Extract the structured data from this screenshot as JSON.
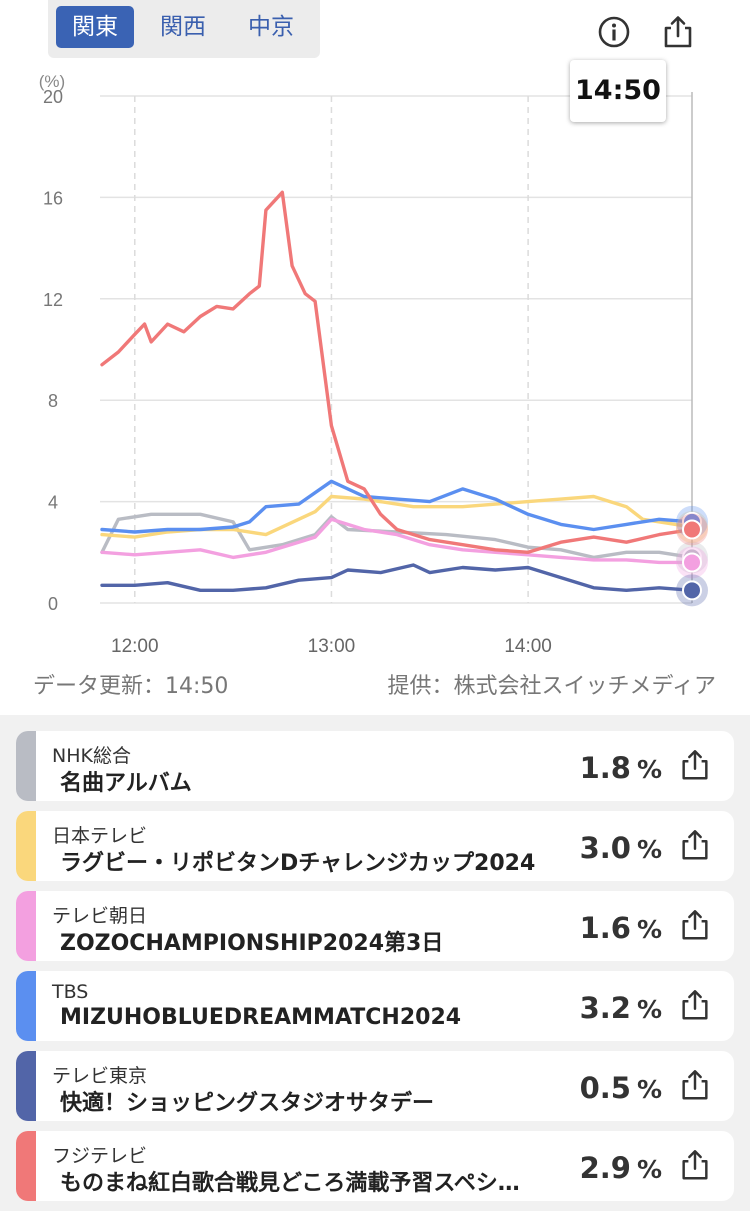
{
  "tabs": [
    {
      "label": "関東",
      "active": true
    },
    {
      "label": "関西",
      "active": false
    },
    {
      "label": "中京",
      "active": false
    }
  ],
  "icons": {
    "info": "info-icon",
    "share": "share-icon"
  },
  "tooltip": "14:50",
  "footer": {
    "updated": "データ更新：14:50",
    "provider": "提供：株式会社スイッチメディア"
  },
  "chart_data": {
    "type": "line",
    "ylabel": "(%)",
    "ylim": [
      0,
      20
    ],
    "yticks": [
      0,
      4,
      8,
      12,
      16,
      20
    ],
    "xlim": [
      "11:50",
      "14:50"
    ],
    "xticks": [
      "12:00",
      "13:00",
      "14:00"
    ],
    "cursor": "14:50",
    "grid": true,
    "series": [
      {
        "name": "NHK総合",
        "color": "#b9bcc4",
        "points": [
          [
            "11:50",
            2.0
          ],
          [
            "11:55",
            3.3
          ],
          [
            "12:05",
            3.5
          ],
          [
            "12:20",
            3.5
          ],
          [
            "12:30",
            3.2
          ],
          [
            "12:35",
            2.1
          ],
          [
            "12:45",
            2.3
          ],
          [
            "12:55",
            2.7
          ],
          [
            "13:00",
            3.4
          ],
          [
            "13:05",
            2.9
          ],
          [
            "13:20",
            2.8
          ],
          [
            "13:35",
            2.7
          ],
          [
            "13:50",
            2.5
          ],
          [
            "14:00",
            2.2
          ],
          [
            "14:10",
            2.1
          ],
          [
            "14:20",
            1.8
          ],
          [
            "14:30",
            2.0
          ],
          [
            "14:40",
            2.0
          ],
          [
            "14:50",
            1.8
          ]
        ]
      },
      {
        "name": "日本テレビ",
        "color": "#fad77c",
        "points": [
          [
            "11:50",
            2.7
          ],
          [
            "12:00",
            2.6
          ],
          [
            "12:10",
            2.8
          ],
          [
            "12:20",
            2.9
          ],
          [
            "12:30",
            2.9
          ],
          [
            "12:40",
            2.7
          ],
          [
            "12:50",
            3.3
          ],
          [
            "12:55",
            3.6
          ],
          [
            "13:00",
            4.2
          ],
          [
            "13:10",
            4.1
          ],
          [
            "13:25",
            3.8
          ],
          [
            "13:40",
            3.8
          ],
          [
            "14:00",
            4.0
          ],
          [
            "14:10",
            4.1
          ],
          [
            "14:20",
            4.2
          ],
          [
            "14:30",
            3.8
          ],
          [
            "14:35",
            3.3
          ],
          [
            "14:45",
            3.1
          ],
          [
            "14:50",
            3.0
          ]
        ]
      },
      {
        "name": "テレビ朝日",
        "color": "#f3a0e0",
        "points": [
          [
            "11:50",
            2.0
          ],
          [
            "12:00",
            1.9
          ],
          [
            "12:10",
            2.0
          ],
          [
            "12:20",
            2.1
          ],
          [
            "12:30",
            1.8
          ],
          [
            "12:40",
            2.0
          ],
          [
            "12:50",
            2.4
          ],
          [
            "12:55",
            2.6
          ],
          [
            "13:00",
            3.3
          ],
          [
            "13:10",
            2.9
          ],
          [
            "13:20",
            2.7
          ],
          [
            "13:30",
            2.3
          ],
          [
            "13:40",
            2.1
          ],
          [
            "13:50",
            2.0
          ],
          [
            "14:00",
            1.9
          ],
          [
            "14:10",
            1.8
          ],
          [
            "14:20",
            1.7
          ],
          [
            "14:30",
            1.7
          ],
          [
            "14:40",
            1.6
          ],
          [
            "14:50",
            1.6
          ]
        ]
      },
      {
        "name": "TBS",
        "color": "#5b8ff0",
        "points": [
          [
            "11:50",
            2.9
          ],
          [
            "12:00",
            2.8
          ],
          [
            "12:10",
            2.9
          ],
          [
            "12:20",
            2.9
          ],
          [
            "12:30",
            3.0
          ],
          [
            "12:35",
            3.2
          ],
          [
            "12:40",
            3.8
          ],
          [
            "12:50",
            3.9
          ],
          [
            "13:00",
            4.8
          ],
          [
            "13:10",
            4.2
          ],
          [
            "13:20",
            4.1
          ],
          [
            "13:30",
            4.0
          ],
          [
            "13:40",
            4.5
          ],
          [
            "13:50",
            4.1
          ],
          [
            "14:00",
            3.5
          ],
          [
            "14:10",
            3.1
          ],
          [
            "14:20",
            2.9
          ],
          [
            "14:30",
            3.1
          ],
          [
            "14:40",
            3.3
          ],
          [
            "14:50",
            3.2
          ]
        ]
      },
      {
        "name": "テレビ東京",
        "color": "#5265a8",
        "points": [
          [
            "11:50",
            0.7
          ],
          [
            "12:00",
            0.7
          ],
          [
            "12:10",
            0.8
          ],
          [
            "12:20",
            0.5
          ],
          [
            "12:30",
            0.5
          ],
          [
            "12:40",
            0.6
          ],
          [
            "12:50",
            0.9
          ],
          [
            "13:00",
            1.0
          ],
          [
            "13:05",
            1.3
          ],
          [
            "13:15",
            1.2
          ],
          [
            "13:25",
            1.5
          ],
          [
            "13:30",
            1.2
          ],
          [
            "13:40",
            1.4
          ],
          [
            "13:50",
            1.3
          ],
          [
            "14:00",
            1.4
          ],
          [
            "14:10",
            1.0
          ],
          [
            "14:20",
            0.6
          ],
          [
            "14:30",
            0.5
          ],
          [
            "14:40",
            0.6
          ],
          [
            "14:50",
            0.5
          ]
        ]
      },
      {
        "name": "フジテレビ",
        "color": "#f07878",
        "points": [
          [
            "11:50",
            9.4
          ],
          [
            "11:55",
            9.9
          ],
          [
            "12:00",
            10.6
          ],
          [
            "12:03",
            11.0
          ],
          [
            "12:05",
            10.3
          ],
          [
            "12:10",
            11.0
          ],
          [
            "12:15",
            10.7
          ],
          [
            "12:20",
            11.3
          ],
          [
            "12:25",
            11.7
          ],
          [
            "12:30",
            11.6
          ],
          [
            "12:35",
            12.2
          ],
          [
            "12:38",
            12.5
          ],
          [
            "12:40",
            15.5
          ],
          [
            "12:45",
            16.2
          ],
          [
            "12:48",
            13.3
          ],
          [
            "12:52",
            12.2
          ],
          [
            "12:55",
            11.9
          ],
          [
            "13:00",
            7.0
          ],
          [
            "13:05",
            4.8
          ],
          [
            "13:10",
            4.5
          ],
          [
            "13:15",
            3.5
          ],
          [
            "13:20",
            2.9
          ],
          [
            "13:30",
            2.5
          ],
          [
            "13:40",
            2.3
          ],
          [
            "13:50",
            2.1
          ],
          [
            "14:00",
            2.0
          ],
          [
            "14:05",
            2.2
          ],
          [
            "14:10",
            2.4
          ],
          [
            "14:20",
            2.6
          ],
          [
            "14:30",
            2.4
          ],
          [
            "14:40",
            2.7
          ],
          [
            "14:50",
            2.9
          ]
        ]
      }
    ]
  },
  "list": [
    {
      "station": "NHK総合",
      "program": "名曲アルバム",
      "rating": "1.8",
      "unit": "%",
      "color": "#b9bcc4"
    },
    {
      "station": "日本テレビ",
      "program": "ラグビー・リポビタンDチャレンジカップ2024",
      "rating": "3.0",
      "unit": "%",
      "color": "#fad77c"
    },
    {
      "station": "テレビ朝日",
      "program": "ZOZOCHAMPIONSHIP2024第3日",
      "rating": "1.6",
      "unit": "%",
      "color": "#f3a0e0"
    },
    {
      "station": "TBS",
      "program": "MIZUHOBLUEDREAMMATCH2024",
      "rating": "3.2",
      "unit": "%",
      "color": "#5b8ff0"
    },
    {
      "station": "テレビ東京",
      "program": "快適！ショッピングスタジオサタデー",
      "rating": "0.5",
      "unit": "%",
      "color": "#5265a8"
    },
    {
      "station": "フジテレビ",
      "program": "ものまね紅白歌合戦見どころ満載予習スペシ…",
      "rating": "2.9",
      "unit": "%",
      "color": "#f07878"
    }
  ]
}
